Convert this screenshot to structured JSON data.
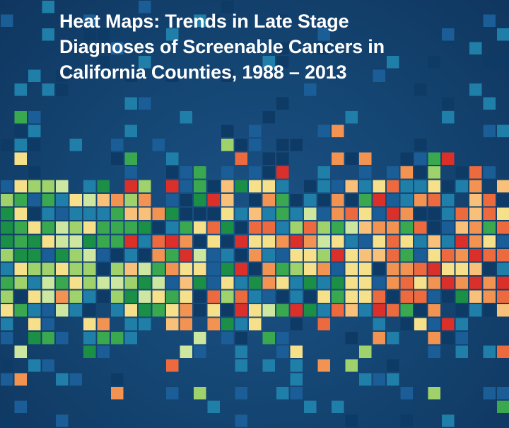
{
  "cover": {
    "title_lines": [
      "Heat Maps: Trends in Late Stage",
      "Diagnoses of Screenable Cancers in",
      "California Counties, 1988 – 2013"
    ]
  },
  "mosaic": {
    "description_colors": {
      "background": "#154775",
      "dark_blue": "#0e3a66",
      "mid_blue": "#1b5d96",
      "teal": "#1f7fa8",
      "dark_green": "#1a8f45",
      "green": "#3aa84f",
      "light_green": "#9fd26a",
      "pale_green": "#cde6a0",
      "yellow": "#f7e08a",
      "light_orange": "#f9c07a",
      "orange": "#f39352",
      "red_orange": "#ec6a3d",
      "red": "#db2f2a"
    }
  }
}
